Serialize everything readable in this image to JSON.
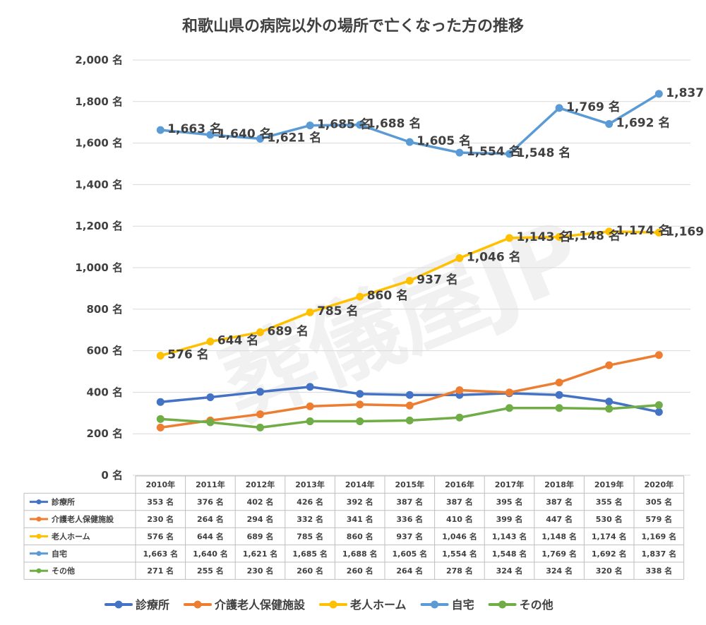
{
  "chart_data": {
    "type": "line",
    "title": "和歌山県の病院以外の場所で亡くなった方の推移",
    "categories": [
      "2010年",
      "2011年",
      "2012年",
      "2013年",
      "2014年",
      "2015年",
      "2016年",
      "2017年",
      "2018年",
      "2019年",
      "2020年"
    ],
    "ylim": [
      0,
      2000
    ],
    "yticks": [
      0,
      200,
      400,
      600,
      800,
      1000,
      1200,
      1400,
      1600,
      1800,
      2000
    ],
    "ytick_labels": [
      "0 名",
      "200 名",
      "400 名",
      "600 名",
      "800 名",
      "1,000 名",
      "1,200 名",
      "1,400 名",
      "1,600 名",
      "1,800 名",
      "2,000 名"
    ],
    "grid": true,
    "legend_position": "bottom",
    "watermark": "葬儀屋JP",
    "series": [
      {
        "name": "診療所",
        "color": "#4472c4",
        "labeled": false,
        "values": [
          353,
          376,
          402,
          426,
          392,
          387,
          387,
          395,
          387,
          355,
          305
        ],
        "labels": [
          "353 名",
          "376 名",
          "402 名",
          "426 名",
          "392 名",
          "387 名",
          "387 名",
          "395 名",
          "387 名",
          "355 名",
          "305 名"
        ]
      },
      {
        "name": "介護老人保健施設",
        "color": "#ed7d31",
        "labeled": false,
        "values": [
          230,
          264,
          294,
          332,
          341,
          336,
          410,
          399,
          447,
          530,
          579
        ],
        "labels": [
          "230 名",
          "264 名",
          "294 名",
          "332 名",
          "341 名",
          "336 名",
          "410 名",
          "399 名",
          "447 名",
          "530 名",
          "579 名"
        ]
      },
      {
        "name": "老人ホーム",
        "color": "#ffc000",
        "labeled": true,
        "values": [
          576,
          644,
          689,
          785,
          860,
          937,
          1046,
          1143,
          1148,
          1174,
          1169
        ],
        "labels": [
          "576 名",
          "644 名",
          "689 名",
          "785 名",
          "860 名",
          "937 名",
          "1,046 名",
          "1,143 名",
          "1,148 名",
          "1,174 名",
          "1,169 名"
        ]
      },
      {
        "name": "自宅",
        "color": "#5b9bd5",
        "labeled": true,
        "values": [
          1663,
          1640,
          1621,
          1685,
          1688,
          1605,
          1554,
          1548,
          1769,
          1692,
          1837
        ],
        "labels": [
          "1,663 名",
          "1,640 名",
          "1,621 名",
          "1,685 名",
          "1,688 名",
          "1,605 名",
          "1,554 名",
          "1,548 名",
          "1,769 名",
          "1,692 名",
          "1,837 名"
        ]
      },
      {
        "name": "その他",
        "color": "#70ad47",
        "labeled": false,
        "values": [
          271,
          255,
          230,
          260,
          260,
          264,
          278,
          324,
          324,
          320,
          338
        ],
        "labels": [
          "271 名",
          "255 名",
          "230 名",
          "260 名",
          "260 名",
          "264 名",
          "278 名",
          "324 名",
          "324 名",
          "320 名",
          "338 名"
        ]
      }
    ]
  }
}
